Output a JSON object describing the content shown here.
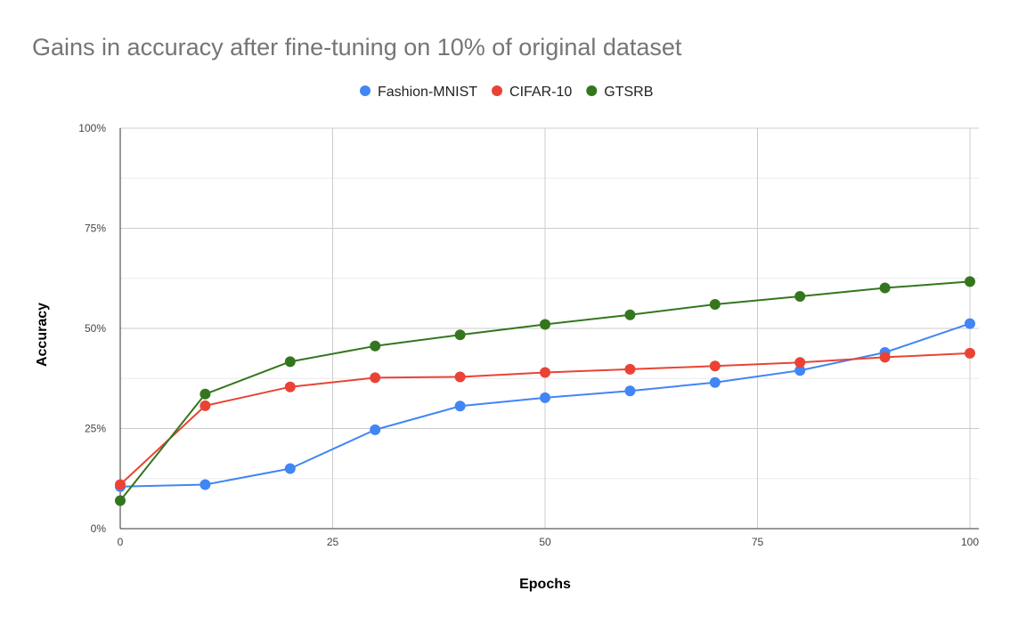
{
  "chart_data": {
    "type": "line",
    "title": "Gains in accuracy after fine-tuning on 10% of original dataset",
    "xlabel": "Epochs",
    "ylabel": "Accuracy",
    "xlim": [
      0,
      100
    ],
    "ylim": [
      0,
      1
    ],
    "x_ticks": [
      0,
      25,
      50,
      75,
      100
    ],
    "x_tick_labels": [
      "0",
      "25",
      "50",
      "75",
      "100"
    ],
    "y_ticks": [
      0,
      0.25,
      0.5,
      0.75,
      1
    ],
    "y_tick_labels": [
      "0%",
      "25%",
      "50%",
      "75%",
      "100%"
    ],
    "grid": true,
    "legend_position": "top",
    "x": [
      0,
      10,
      20,
      30,
      40,
      50,
      60,
      70,
      80,
      90,
      100
    ],
    "series": [
      {
        "name": "Fashion-MNIST",
        "color": "#4285f4",
        "values": [
          0.105,
          0.11,
          0.15,
          0.247,
          0.306,
          0.327,
          0.344,
          0.365,
          0.395,
          0.44,
          0.512
        ]
      },
      {
        "name": "CIFAR-10",
        "color": "#ea4335",
        "values": [
          0.11,
          0.307,
          0.354,
          0.377,
          0.379,
          0.39,
          0.398,
          0.406,
          0.415,
          0.428,
          0.438
        ]
      },
      {
        "name": "GTSRB",
        "color": "#34761e",
        "values": [
          0.07,
          0.336,
          0.417,
          0.456,
          0.484,
          0.51,
          0.534,
          0.56,
          0.58,
          0.601,
          0.617
        ]
      }
    ]
  }
}
